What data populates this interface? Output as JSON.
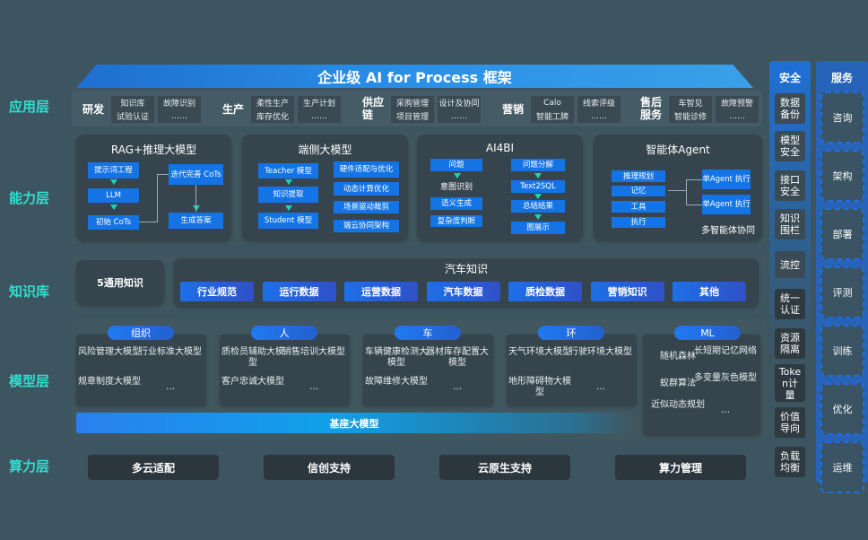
{
  "title": "企业级 AI for Process 框架",
  "layers": {
    "app": "应用层",
    "capability": "能力层",
    "knowledge": "知识库",
    "model": "模型层",
    "compute": "算力层"
  },
  "app_groups": [
    {
      "name": "研发",
      "items": [
        "知识库",
        "故障识别",
        "试验认证",
        "……"
      ]
    },
    {
      "name": "生产",
      "items": [
        "柔性生产",
        "生产计划",
        "库存优化",
        "……"
      ]
    },
    {
      "name": "供应链",
      "items": [
        "采购管理",
        "设计及协同",
        "项目管理",
        "……"
      ]
    },
    {
      "name": "营销",
      "items": [
        "Calo",
        "线索评级",
        "智能工牌",
        "……"
      ]
    },
    {
      "name": "售后服务",
      "items": [
        "车智见",
        "故障预警",
        "智能诊修",
        "……"
      ]
    }
  ],
  "capabilities": [
    {
      "title": "RAG+推理大模型",
      "boxes": [
        "提示词工程",
        "LLM",
        "初始 CoTs",
        "迭代完善 CoTs",
        "生成答案"
      ]
    },
    {
      "title": "端侧大模型",
      "boxes": [
        "Teacher 模型",
        "知识提取",
        "Student 模型",
        "硬件适配与优化",
        "动态计算优化",
        "场景驱动裁剪",
        "端云协同架构"
      ]
    },
    {
      "title": "AI4BI",
      "boxes": [
        "问题",
        "意图识别",
        "语义生成",
        "复杂度判断",
        "问题分解",
        "Text2SQL",
        "总结结果",
        "图展示"
      ]
    },
    {
      "title": "智能体Agent",
      "boxes": [
        "推理规划",
        "记忆",
        "工具",
        "执行",
        "单Agent 执行",
        "单Agent 执行",
        "多智能体协同"
      ]
    }
  ],
  "knowledge": {
    "general": "5通用知识",
    "auto_title": "汽车知识",
    "items": [
      "行业规范",
      "运行数据",
      "运营数据",
      "汽车数据",
      "质检数据",
      "营销知识",
      "其他"
    ]
  },
  "models": [
    {
      "name": "组织",
      "items": [
        "风险管理大模型",
        "行业标准大模型",
        "规章制度大模型",
        "…"
      ]
    },
    {
      "name": "人",
      "items": [
        "质检员辅助大模型",
        "销售培训大模型",
        "客户忠诚大模型",
        "…"
      ]
    },
    {
      "name": "车",
      "items": [
        "车辆健康检测大模型",
        "器材库存配置大模型",
        "故障维修大模型",
        "…"
      ]
    },
    {
      "name": "环",
      "items": [
        "天气环境大模型",
        "行驶环境大模型",
        "地形障碍物大模型",
        "…"
      ]
    },
    {
      "name": "ML",
      "items": [
        "随机森林",
        "长短期记忆网络",
        "蚁群算法",
        "多变量灰色模型",
        "近似动态规划",
        "…"
      ]
    }
  ],
  "base_model": "基座大模型",
  "compute": [
    "多云适配",
    "信创支持",
    "云原生支持",
    "算力管理"
  ],
  "security": {
    "title": "安全",
    "items": [
      "数据备份",
      "模型安全",
      "接口安全",
      "知识围栏",
      "流控",
      "统一认证",
      "资源隔离",
      "Token计量",
      "价值导向",
      "负载均衡"
    ]
  },
  "service": {
    "title": "服务",
    "items": [
      "咨询",
      "架构",
      "部署",
      "评测",
      "训练",
      "优化",
      "运维"
    ]
  },
  "colors": {
    "background": "#3d5561",
    "accent": "#1474e6",
    "layer_label": "#2fe0cf"
  }
}
